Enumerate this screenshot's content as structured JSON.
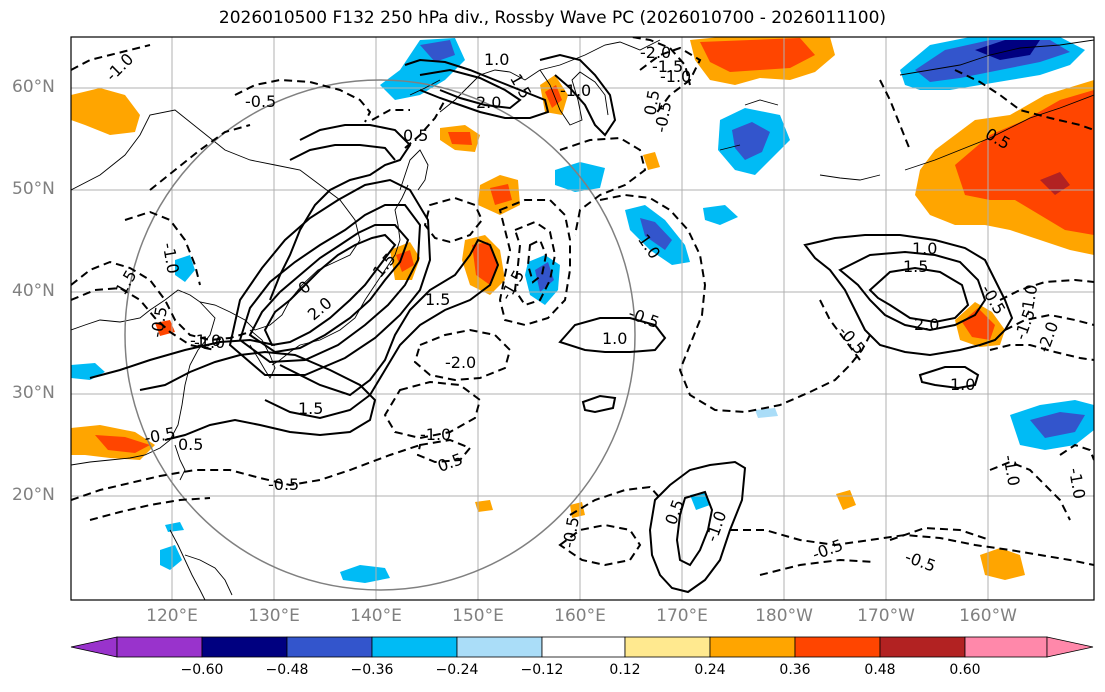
{
  "title": "2026010500 F132 250 hPa div., Rossby Wave PC (2026010700 - 2026011100)",
  "lat_labels": [
    "60°N",
    "50°N",
    "40°N",
    "30°N",
    "20°N"
  ],
  "lon_labels": [
    "120°E",
    "130°E",
    "140°E",
    "150°E",
    "160°E",
    "170°E",
    "180°W",
    "170°W",
    "160°W"
  ],
  "colorbar": {
    "ticks": [
      "−0.60",
      "−0.48",
      "−0.36",
      "−0.24",
      "−0.12",
      "0.12",
      "0.24",
      "0.36",
      "0.48",
      "0.60"
    ],
    "colors": [
      "#9933cc",
      "#000080",
      "#3355cc",
      "#00bbf5",
      "#aaddf8",
      "#ffffff",
      "#ffe98f",
      "#ffa500",
      "#ff4500",
      "#b22222",
      "#ff88aa"
    ]
  },
  "contour_labels": {
    "l1": "-1.0",
    "l2": "1.0",
    "l3": "-2.0",
    "l4": "-1.5",
    "l5": "-1.0",
    "l6": "1.5",
    "l7": "2.0",
    "l8": "-0.5",
    "l9": "0.5",
    "l10": "-0.5",
    "l11": "-1.0",
    "l12": "-1.0",
    "l13": "1.5",
    "l14": "-0.5",
    "l15": "0",
    "l16": "2.0",
    "l17": "1.5",
    "l18": "-1.0",
    "l19": "1.0",
    "l20": "-1.5",
    "l21": "-2.0",
    "l22": "1.5",
    "l23": "0.5",
    "l24": "1.0",
    "l25": "-0.5",
    "l26": "1.0",
    "l27": "1.5",
    "l28": "2.0",
    "l29": "-0.5",
    "l30": "1.0",
    "l31": "0.5",
    "l32": "-1.0",
    "l33": "-2.0",
    "l34": "-1.5",
    "l35": "1.5",
    "l36": "0.5",
    "l37": "-1.0",
    "l38": "-0.5",
    "l39": "0.5",
    "l40": "-1.0",
    "l41": "-0.5",
    "l42": "-0.5",
    "l43": "-0.5",
    "l44": "0.5",
    "l45": "-1.0",
    "l46": "-0.5",
    "l47": "-1.0",
    "l48": "-0.5",
    "l49": "-1.0"
  }
}
